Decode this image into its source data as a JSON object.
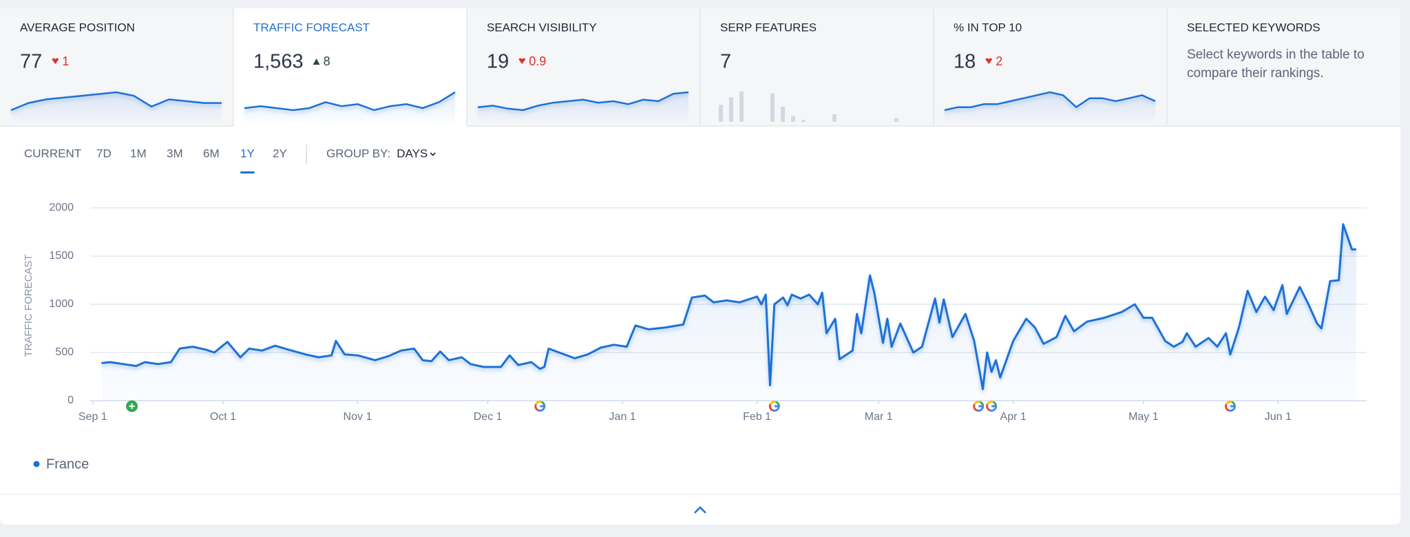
{
  "cards": [
    {
      "title": "AVERAGE POSITION",
      "value": 77,
      "change": 1,
      "direction": "down",
      "sparkline": [
        3,
        5,
        6,
        6.5,
        7,
        7.5,
        8,
        7,
        4,
        6,
        5.5,
        5,
        5
      ]
    },
    {
      "title": "TRAFFIC FORECAST",
      "value": "1,563",
      "change": 8,
      "direction": "up",
      "sparkline": [
        4,
        5,
        4,
        3,
        4,
        7,
        5,
        6,
        3,
        5,
        6,
        4,
        7,
        12
      ]
    },
    {
      "title": "SEARCH VISIBILITY",
      "value": 19,
      "change": 0.9,
      "direction": "down",
      "sparkline": [
        5,
        6,
        4,
        3,
        6,
        8,
        9,
        10,
        8,
        9,
        7,
        10,
        9,
        14,
        15
      ]
    },
    {
      "title": "SERP FEATURES",
      "value": 7,
      "bars": [
        9,
        13,
        16,
        0,
        0,
        15,
        8,
        3,
        1,
        0,
        0,
        4,
        0,
        0,
        0,
        0,
        0,
        2
      ]
    },
    {
      "title": "% IN TOP 10",
      "value": 18,
      "change": 2,
      "direction": "down",
      "sparkline": [
        4,
        5,
        5,
        6,
        6,
        7,
        8,
        9,
        10,
        9,
        5,
        8,
        8,
        7,
        8,
        9,
        7
      ]
    },
    {
      "title": "SELECTED KEYWORDS",
      "description": "Select keywords in the table to compare their rankings."
    }
  ],
  "active_card": 1,
  "ranges": [
    "CURRENT",
    "7D",
    "1M",
    "3M",
    "6M",
    "1Y",
    "2Y"
  ],
  "active_range": 5,
  "group_by": {
    "label": "GROUP BY:",
    "value": "DAYS"
  },
  "chart_data": {
    "type": "line",
    "y_label": "TRAFFIC FORECAST",
    "x": [
      2,
      4,
      7,
      10,
      12,
      15,
      18,
      20,
      23,
      26,
      28,
      31,
      34,
      36,
      39,
      42,
      45,
      49,
      52,
      55,
      56,
      58,
      61,
      65,
      68,
      71,
      74,
      76,
      78,
      80,
      82,
      85,
      87,
      90,
      94,
      96,
      98,
      101,
      103,
      104,
      105,
      108,
      111,
      114,
      117,
      120,
      123,
      125,
      128,
      132,
      136,
      138,
      141,
      143,
      146,
      149,
      153,
      154,
      155,
      156,
      157,
      159,
      160,
      161,
      163,
      165,
      167,
      168,
      169,
      171,
      172,
      175,
      176,
      177,
      179,
      180,
      182,
      183,
      184,
      186,
      189,
      191,
      194,
      195,
      196,
      198,
      201,
      203,
      205,
      206,
      207,
      208,
      209,
      212,
      215,
      217,
      219,
      222,
      224,
      226,
      229,
      233,
      237,
      240,
      242,
      244,
      247,
      249,
      251,
      252,
      254,
      257,
      259,
      261,
      262,
      264,
      266,
      268,
      270,
      272,
      274,
      275,
      278,
      280,
      282,
      283,
      285,
      287,
      288,
      290,
      291
    ],
    "series": [
      {
        "name": "France",
        "color": "#1f6fd6",
        "values": [
          390,
          400,
          380,
          360,
          400,
          380,
          400,
          540,
          560,
          530,
          500,
          610,
          450,
          540,
          520,
          570,
          530,
          480,
          450,
          470,
          620,
          480,
          470,
          420,
          460,
          520,
          540,
          420,
          410,
          510,
          420,
          450,
          380,
          350,
          350,
          470,
          370,
          400,
          330,
          350,
          540,
          490,
          440,
          480,
          550,
          580,
          560,
          780,
          740,
          760,
          790,
          1070,
          1090,
          1020,
          1040,
          1020,
          1080,
          1000,
          1100,
          160,
          1000,
          1070,
          990,
          1100,
          1060,
          1100,
          1000,
          1120,
          700,
          850,
          430,
          520,
          900,
          700,
          1300,
          1120,
          600,
          850,
          560,
          800,
          500,
          560,
          1060,
          810,
          1050,
          660,
          900,
          620,
          120,
          500,
          300,
          420,
          240,
          620,
          850,
          760,
          590,
          660,
          880,
          720,
          820,
          860,
          920,
          1000,
          860,
          860,
          620,
          560,
          610,
          700,
          560,
          650,
          560,
          700,
          480,
          760,
          1140,
          920,
          1080,
          940,
          1200,
          900,
          1180,
          1000,
          800,
          750,
          1240,
          1250,
          1830,
          1570,
          1570
        ]
      }
    ],
    "xlim": [
      -0.6,
      293.4
    ],
    "ylim": [
      0,
      2000
    ],
    "yticks": [
      0,
      500,
      1000,
      1500,
      2000
    ],
    "xticks": [
      {
        "value": 0,
        "label": "Sep 1"
      },
      {
        "value": 30,
        "label": "Oct 1"
      },
      {
        "value": 61,
        "label": "Nov 1"
      },
      {
        "value": 91,
        "label": "Dec 1"
      },
      {
        "value": 122,
        "label": "Jan 1"
      },
      {
        "value": 153,
        "label": "Feb 1"
      },
      {
        "value": 181,
        "label": "Mar 1"
      },
      {
        "value": 212,
        "label": "Apr 1"
      },
      {
        "value": 242,
        "label": "May 1"
      },
      {
        "value": 273,
        "label": "Jun 1"
      }
    ],
    "grid": true,
    "google_updates": [
      103,
      157,
      204,
      207,
      262
    ],
    "added_marker": 9
  }
}
